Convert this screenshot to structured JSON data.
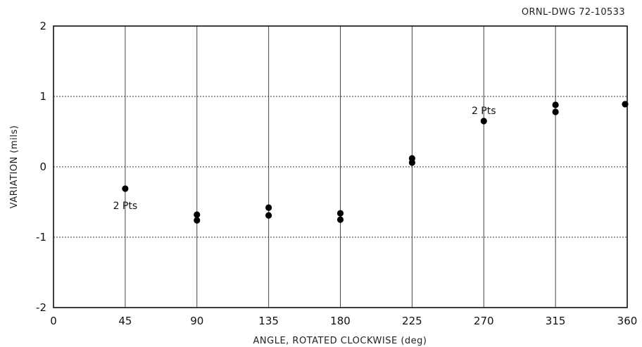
{
  "drawing_id": "ORNL-DWG 72-10533",
  "chart_data": {
    "type": "scatter",
    "xlabel": "ANGLE, ROTATED CLOCKWISE (deg)",
    "ylabel": "VARIATION (mils)",
    "xlim": [
      0,
      360
    ],
    "ylim": [
      -2,
      2
    ],
    "x_ticks": [
      0,
      45,
      90,
      135,
      180,
      225,
      270,
      315,
      360
    ],
    "y_ticks": [
      2,
      1,
      0,
      -1,
      -2
    ],
    "x_tick_labels": [
      "0",
      "45",
      "90",
      "135",
      "180",
      "225",
      "270",
      "315",
      "360"
    ],
    "y_tick_labels": [
      "2",
      "1",
      "0",
      "-1",
      "-2"
    ],
    "grid": "on",
    "series": [
      {
        "points": [
          {
            "x": 45,
            "y": -0.31
          },
          {
            "x": 90,
            "y": -0.68
          },
          {
            "x": 90,
            "y": -0.76
          },
          {
            "x": 135,
            "y": -0.58
          },
          {
            "x": 135,
            "y": -0.69
          },
          {
            "x": 180,
            "y": -0.66
          },
          {
            "x": 180,
            "y": -0.75
          },
          {
            "x": 225,
            "y": 0.12
          },
          {
            "x": 225,
            "y": 0.06
          },
          {
            "x": 270,
            "y": 0.65
          },
          {
            "x": 315,
            "y": 0.88
          },
          {
            "x": 315,
            "y": 0.78
          },
          {
            "x": 360,
            "y": 0.89
          }
        ]
      }
    ],
    "annotations": [
      {
        "text": "2 Pts",
        "x": 45,
        "y": -0.31
      },
      {
        "text": "2 Pts",
        "x": 270,
        "y": 0.65
      }
    ]
  }
}
